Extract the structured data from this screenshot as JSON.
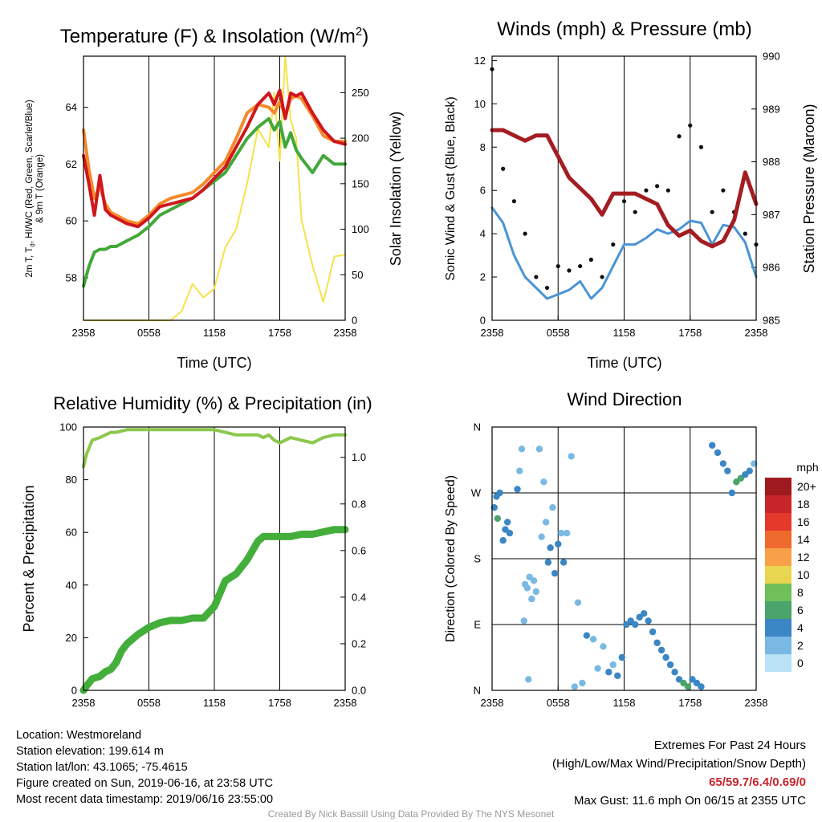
{
  "chart_data": [
    {
      "type": "line",
      "title": "Temperature (F) & Insolation (W/m²)",
      "xlabel": "Time (UTC)",
      "ylabel": "2m T, T_d, HI/WC (Red, Green, Scarlet/Blue) & 9m T (Orange)",
      "ylabel_line1": "2m T, T",
      "ylabel_sub": "d",
      "ylabel_line1_rest": ", HI/WC (Red, Green, Scarlet/Blue)",
      "ylabel_line2": "& 9m T (Orange)",
      "y2label": "Solar Insolation (Yellow)",
      "xticks": [
        "2358",
        "0558",
        "1158",
        "1758",
        "2358"
      ],
      "ylim": [
        56.5,
        65.8
      ],
      "yticks": [
        58,
        60,
        62,
        64
      ],
      "y2lim": [
        0,
        290
      ],
      "y2ticks": [
        0,
        50,
        100,
        150,
        200,
        250
      ],
      "x_hours": [
        0,
        0.5,
        1,
        1.5,
        2,
        2.5,
        3,
        4,
        5,
        6,
        7,
        8,
        9,
        10,
        11,
        12,
        13,
        14,
        15,
        16,
        17,
        17.5,
        18,
        18.5,
        19,
        19.5,
        20,
        21,
        22,
        23,
        24
      ],
      "series": [
        {
          "name": "2m T",
          "color": "#d0161d",
          "values": [
            62.3,
            61.3,
            60.2,
            61.6,
            60.4,
            60.2,
            60.1,
            59.9,
            59.8,
            60.1,
            60.5,
            60.6,
            60.7,
            60.8,
            61.1,
            61.5,
            61.9,
            62.6,
            63.3,
            64.1,
            64.5,
            64.1,
            64.6,
            63.6,
            64.5,
            64.4,
            64.5,
            63.8,
            63.2,
            62.8,
            62.7
          ]
        },
        {
          "name": "9m T",
          "color": "#f7892a",
          "values": [
            63.2,
            61.8,
            60.8,
            61.2,
            60.6,
            60.3,
            60.2,
            60.0,
            59.9,
            60.2,
            60.6,
            60.8,
            60.9,
            61.0,
            61.3,
            61.7,
            62.1,
            62.9,
            63.8,
            64.1,
            64.0,
            63.8,
            64.2,
            63.7,
            64.3,
            64.4,
            64.3,
            63.7,
            63.0,
            62.8,
            62.8
          ]
        },
        {
          "name": "Dewpoint",
          "color": "#43a83a",
          "values": [
            57.7,
            58.4,
            58.9,
            59.0,
            59.0,
            59.1,
            59.1,
            59.3,
            59.5,
            59.8,
            60.2,
            60.4,
            60.6,
            60.8,
            61.1,
            61.4,
            61.7,
            62.3,
            62.9,
            63.3,
            63.6,
            63.2,
            63.5,
            62.6,
            63.1,
            62.5,
            62.2,
            61.7,
            62.3,
            62.0,
            62.0
          ]
        },
        {
          "name": "Solar Insolation",
          "color": "#f5e24a",
          "axis": "right",
          "values": [
            0,
            0,
            0,
            0,
            0,
            0,
            0,
            0,
            0,
            0,
            0,
            0,
            10,
            40,
            25,
            35,
            80,
            100,
            150,
            210,
            190,
            250,
            175,
            290,
            220,
            200,
            110,
            60,
            20,
            70,
            72
          ]
        }
      ]
    },
    {
      "type": "line",
      "title": "Winds (mph) & Pressure (mb)",
      "xlabel": "Time (UTC)",
      "ylabel": "Sonic Wind & Gust (Blue, Black)",
      "y2label": "Station Pressure (Maroon)",
      "xticks": [
        "2358",
        "0558",
        "1158",
        "1758",
        "2358"
      ],
      "ylim": [
        0,
        12.2
      ],
      "yticks": [
        0,
        2,
        4,
        6,
        8,
        10,
        12
      ],
      "y2lim": [
        985,
        990
      ],
      "y2ticks": [
        985,
        986,
        987,
        988,
        989,
        990
      ],
      "x_hours": [
        0,
        1,
        2,
        3,
        4,
        5,
        6,
        7,
        8,
        9,
        10,
        11,
        12,
        13,
        14,
        15,
        16,
        17,
        18,
        19,
        20,
        21,
        22,
        23,
        24
      ],
      "series": [
        {
          "name": "Sonic Wind",
          "color": "#4a94d6",
          "values": [
            5.2,
            4.5,
            3.0,
            2.0,
            1.5,
            1.0,
            1.2,
            1.4,
            1.8,
            1.0,
            1.5,
            2.5,
            3.5,
            3.5,
            3.8,
            4.2,
            4.0,
            4.2,
            4.6,
            4.5,
            3.5,
            4.4,
            4.3,
            3.6,
            2.0
          ]
        },
        {
          "name": "Gust",
          "color": "#111111",
          "style": "dots",
          "values": [
            11.6,
            7.0,
            5.5,
            4.0,
            2.0,
            1.5,
            2.5,
            2.3,
            2.5,
            2.8,
            2.0,
            3.5,
            5.5,
            5.0,
            6.0,
            6.2,
            6.0,
            8.5,
            9.0,
            8.0,
            5.0,
            6.0,
            5.0,
            4.0,
            3.5
          ]
        },
        {
          "name": "Station Pressure",
          "color": "#a41d22",
          "axis": "right",
          "values": [
            988.6,
            988.6,
            988.5,
            988.4,
            988.5,
            988.5,
            988.1,
            987.7,
            987.5,
            987.3,
            987.0,
            987.4,
            987.4,
            987.4,
            987.3,
            987.2,
            986.8,
            986.6,
            986.7,
            986.5,
            986.4,
            986.5,
            986.9,
            987.8,
            987.2
          ]
        }
      ]
    },
    {
      "type": "line",
      "title": "Relative Humidity (%) & Precipitation (in)",
      "xlabel": "",
      "ylabel": "Percent & Precipitation",
      "xticks": [
        "2358",
        "0558",
        "1158",
        "1758",
        "2358"
      ],
      "ylim": [
        0,
        100
      ],
      "yticks": [
        0,
        20,
        40,
        60,
        80,
        100
      ],
      "y2lim": [
        0,
        1.13
      ],
      "y2ticks": [
        0.0,
        0.2,
        0.4,
        0.6,
        0.8,
        1.0
      ],
      "x_hours": [
        0,
        0.3,
        0.8,
        1.5,
        2,
        2.5,
        3,
        3.5,
        4,
        5,
        6,
        7,
        8,
        9,
        10,
        11,
        12,
        13,
        14,
        15,
        16,
        16.5,
        17,
        17.5,
        18,
        19,
        20,
        21,
        22,
        23,
        24
      ],
      "series": [
        {
          "name": "Relative Humidity",
          "color": "#8cc84b",
          "values": [
            85,
            90,
            95,
            96,
            97,
            98,
            98,
            98.5,
            99,
            99,
            99,
            99,
            99,
            99,
            99,
            99,
            99,
            98,
            97,
            97,
            97,
            96,
            97,
            95,
            94,
            96,
            95,
            94,
            96,
            97,
            97
          ]
        },
        {
          "name": "Precipitation",
          "color": "#43ae3a",
          "axis": "right",
          "values": [
            0.0,
            0.02,
            0.05,
            0.06,
            0.08,
            0.09,
            0.12,
            0.17,
            0.2,
            0.24,
            0.27,
            0.29,
            0.3,
            0.3,
            0.31,
            0.31,
            0.36,
            0.47,
            0.5,
            0.56,
            0.64,
            0.66,
            0.66,
            0.66,
            0.66,
            0.66,
            0.67,
            0.67,
            0.68,
            0.69,
            0.69
          ]
        }
      ]
    },
    {
      "type": "scatter",
      "title": "Wind Direction",
      "ylabel": "Direction (Colored By Speed)",
      "xticks": [
        "2358",
        "0558",
        "1158",
        "1758",
        "2358"
      ],
      "yticks": [
        "N",
        "E",
        "S",
        "W",
        "N"
      ],
      "ylim_degrees": [
        0,
        360
      ],
      "legend_title": "mph",
      "legend_labels": [
        "20+",
        "18",
        "16",
        "14",
        "12",
        "10",
        "8",
        "6",
        "4",
        "2",
        "0"
      ],
      "legend_colors": [
        "#9e1a1e",
        "#c8242b",
        "#e33a2c",
        "#ee6a2d",
        "#f7a048",
        "#e8d64f",
        "#6fbf5a",
        "#4aa46b",
        "#3b86c4",
        "#7ab9e3",
        "#b9e2f7"
      ],
      "points": [
        {
          "h": 0.2,
          "dir": 250,
          "mph": 3
        },
        {
          "h": 0.4,
          "dir": 265,
          "mph": 4
        },
        {
          "h": 0.5,
          "dir": 235,
          "mph": 6
        },
        {
          "h": 0.7,
          "dir": 270,
          "mph": 3
        },
        {
          "h": 1.0,
          "dir": 205,
          "mph": 3
        },
        {
          "h": 1.2,
          "dir": 220,
          "mph": 4
        },
        {
          "h": 1.4,
          "dir": 230,
          "mph": 4
        },
        {
          "h": 1.6,
          "dir": 215,
          "mph": 4
        },
        {
          "h": 2.3,
          "dir": 275,
          "mph": 3
        },
        {
          "h": 2.5,
          "dir": 300,
          "mph": 2
        },
        {
          "h": 2.7,
          "dir": 330,
          "mph": 2
        },
        {
          "h": 2.9,
          "dir": 95,
          "mph": 2
        },
        {
          "h": 3.0,
          "dir": 145,
          "mph": 1
        },
        {
          "h": 3.2,
          "dir": 140,
          "mph": 1
        },
        {
          "h": 3.3,
          "dir": 15,
          "mph": 1
        },
        {
          "h": 3.4,
          "dir": 155,
          "mph": 1
        },
        {
          "h": 3.6,
          "dir": 125,
          "mph": 1
        },
        {
          "h": 3.8,
          "dir": 150,
          "mph": 1
        },
        {
          "h": 4.0,
          "dir": 135,
          "mph": 1
        },
        {
          "h": 4.3,
          "dir": 330,
          "mph": 1
        },
        {
          "h": 4.5,
          "dir": 210,
          "mph": 2
        },
        {
          "h": 4.7,
          "dir": 285,
          "mph": 2
        },
        {
          "h": 4.9,
          "dir": 230,
          "mph": 2
        },
        {
          "h": 5.1,
          "dir": 175,
          "mph": 3
        },
        {
          "h": 5.3,
          "dir": 195,
          "mph": 3
        },
        {
          "h": 5.5,
          "dir": 250,
          "mph": 2
        },
        {
          "h": 5.7,
          "dir": 160,
          "mph": 4
        },
        {
          "h": 6.0,
          "dir": 200,
          "mph": 3
        },
        {
          "h": 6.3,
          "dir": 215,
          "mph": 2
        },
        {
          "h": 6.5,
          "dir": 175,
          "mph": 3
        },
        {
          "h": 6.8,
          "dir": 215,
          "mph": 2
        },
        {
          "h": 7.2,
          "dir": 320,
          "mph": 2
        },
        {
          "h": 7.5,
          "dir": 5,
          "mph": 2
        },
        {
          "h": 7.8,
          "dir": 120,
          "mph": 2
        },
        {
          "h": 8.2,
          "dir": 10,
          "mph": 2
        },
        {
          "h": 8.6,
          "dir": 75,
          "mph": 3
        },
        {
          "h": 9.2,
          "dir": 70,
          "mph": 2
        },
        {
          "h": 9.6,
          "dir": 30,
          "mph": 2
        },
        {
          "h": 10.1,
          "dir": 60,
          "mph": 2
        },
        {
          "h": 10.6,
          "dir": 25,
          "mph": 3
        },
        {
          "h": 11.0,
          "dir": 35,
          "mph": 2
        },
        {
          "h": 11.4,
          "dir": 20,
          "mph": 3
        },
        {
          "h": 11.8,
          "dir": 45,
          "mph": 3
        },
        {
          "h": 12.2,
          "dir": 90,
          "mph": 4
        },
        {
          "h": 12.6,
          "dir": 95,
          "mph": 4
        },
        {
          "h": 13.0,
          "dir": 90,
          "mph": 4
        },
        {
          "h": 13.4,
          "dir": 100,
          "mph": 4
        },
        {
          "h": 13.8,
          "dir": 105,
          "mph": 4
        },
        {
          "h": 14.2,
          "dir": 95,
          "mph": 4
        },
        {
          "h": 14.6,
          "dir": 80,
          "mph": 4
        },
        {
          "h": 15.0,
          "dir": 65,
          "mph": 4
        },
        {
          "h": 15.4,
          "dir": 55,
          "mph": 4
        },
        {
          "h": 15.8,
          "dir": 45,
          "mph": 4
        },
        {
          "h": 16.2,
          "dir": 35,
          "mph": 4
        },
        {
          "h": 16.6,
          "dir": 25,
          "mph": 4
        },
        {
          "h": 17.0,
          "dir": 15,
          "mph": 4
        },
        {
          "h": 17.4,
          "dir": 10,
          "mph": 6
        },
        {
          "h": 17.8,
          "dir": 5,
          "mph": 6
        },
        {
          "h": 18.2,
          "dir": 15,
          "mph": 4
        },
        {
          "h": 18.6,
          "dir": 10,
          "mph": 4
        },
        {
          "h": 19.0,
          "dir": 5,
          "mph": 4
        },
        {
          "h": 20.0,
          "dir": 335,
          "mph": 4
        },
        {
          "h": 20.5,
          "dir": 325,
          "mph": 4
        },
        {
          "h": 21.0,
          "dir": 310,
          "mph": 3
        },
        {
          "h": 21.4,
          "dir": 300,
          "mph": 3
        },
        {
          "h": 21.8,
          "dir": 270,
          "mph": 3
        },
        {
          "h": 22.2,
          "dir": 285,
          "mph": 5
        },
        {
          "h": 22.6,
          "dir": 290,
          "mph": 6
        },
        {
          "h": 23.0,
          "dir": 295,
          "mph": 3
        },
        {
          "h": 23.4,
          "dir": 300,
          "mph": 3
        },
        {
          "h": 23.8,
          "dir": 310,
          "mph": 2
        }
      ]
    }
  ],
  "info": {
    "location": "Location: Westmoreland",
    "elevation": "Station elevation: 199.614 m",
    "latlon": "Station lat/lon: 43.1065; -75.4615",
    "created": "Figure created on Sun, 2019-06-16, at 23:58 UTC",
    "recent": "Most recent data timestamp: 2019/06/16 23:55:00"
  },
  "extremes": {
    "title": "Extremes For Past 24 Hours",
    "subtitle": "(High/Low/Max Wind/Precipitation/Snow Depth)",
    "values": "65/59.7/6.4/0.69/0",
    "gust": "Max Gust: 11.6 mph On 06/15 at 2355 UTC"
  },
  "credit": "Created By Nick Bassill Using Data Provided By The NYS Mesonet"
}
